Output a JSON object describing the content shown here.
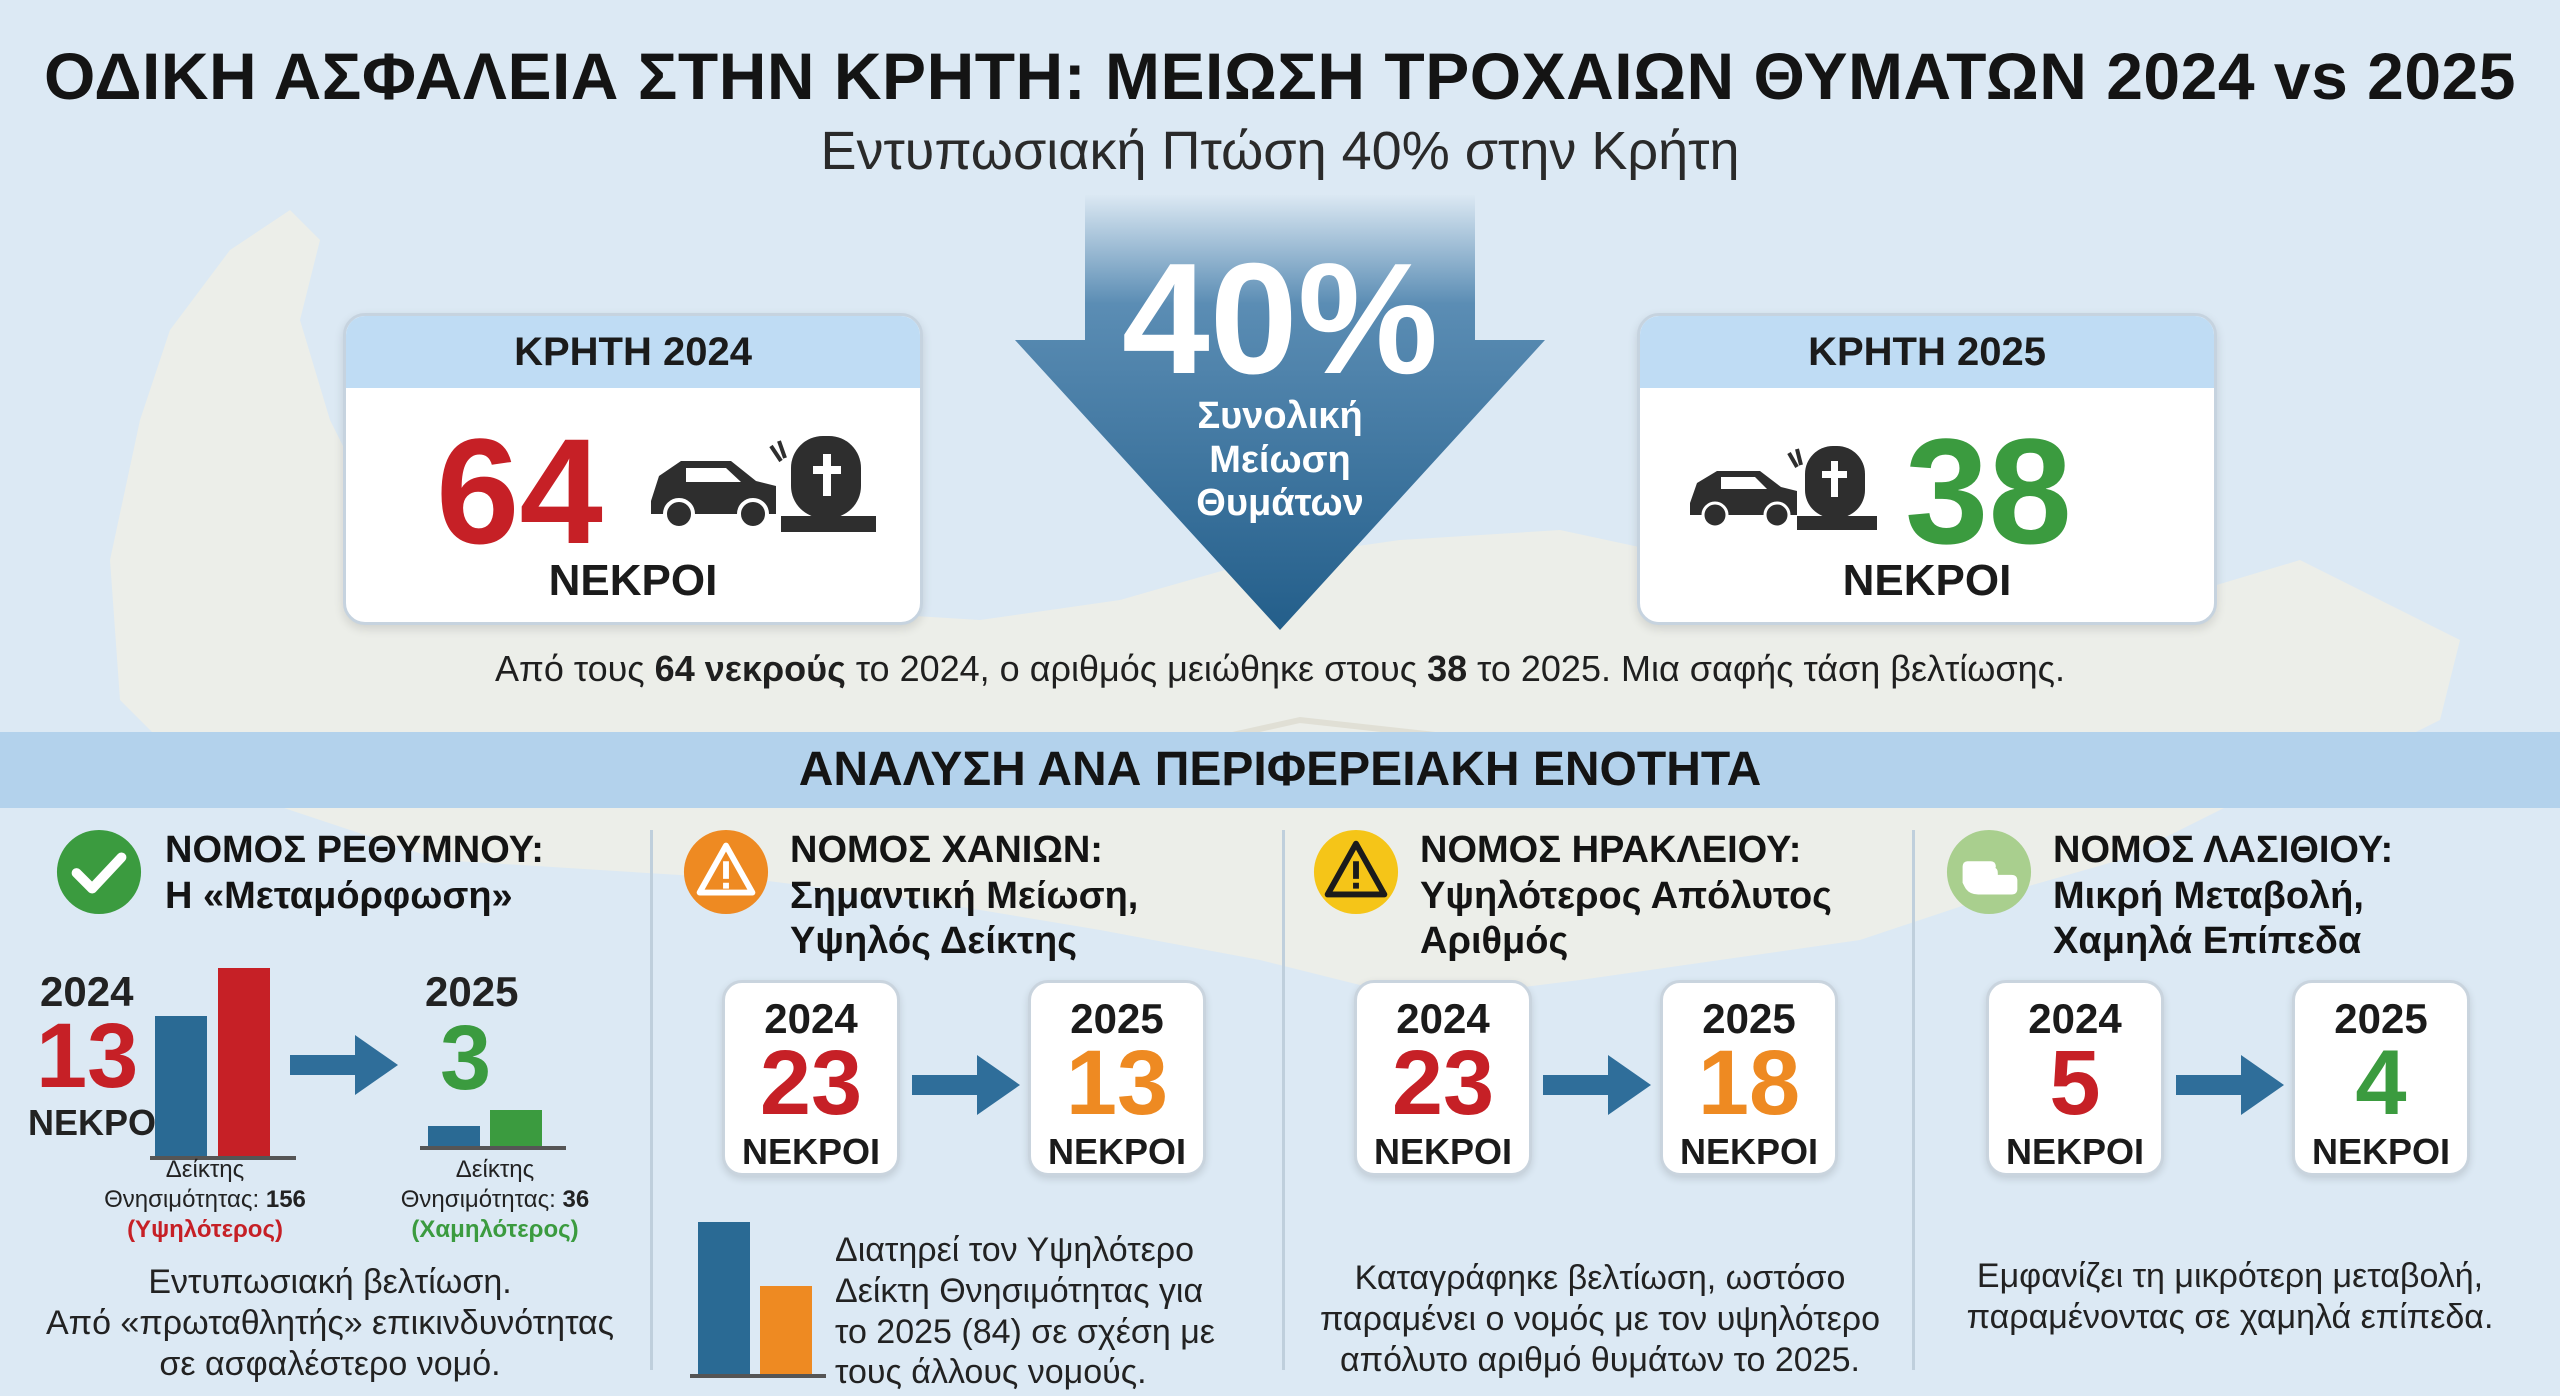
{
  "header": {
    "title": "ΟΔΙΚΗ ΑΣΦΑΛΕΙΑ ΣΤΗΝ ΚΡΗΤΗ: ΜΕΙΩΣΗ ΤΡΟΧΑΙΩΝ ΘΥΜΑΤΩΝ 2024 vs 2025",
    "subtitle": "Εντυπωσιακή Πτώση 40% στην Κρήτη"
  },
  "arrow": {
    "percent": "40%",
    "label": "Συνολική Μείωση Θυμάτων"
  },
  "card_2024": {
    "header": "ΚΡΗΤΗ 2024",
    "value": "64",
    "footer": "ΝΕΚΡΟΙ",
    "icon": "car-crash-tombstone-icon"
  },
  "card_2025": {
    "header": "ΚΡΗΤΗ 2025",
    "value": "38",
    "footer": "ΝΕΚΡΟΙ",
    "icon": "car-crash-tombstone-icon"
  },
  "summary": {
    "part1": "Από τους ",
    "bold1": "64 νεκρούς",
    "part2": " το 2024, ο αριθμός μειώθηκε στους ",
    "bold2": "38",
    "part3": " το 2025. Μια σαφής τάση βελτίωσης."
  },
  "section_title": "ΑΝΑΛΥΣΗ ΑΝΑ ΠΕΡΙΦΕΡΕΙΑΚΗ ΕΝΟΤΗΤΑ",
  "colors": {
    "red": "#c62026",
    "green": "#3b9b3f",
    "orange": "#ee8a22",
    "bar_blue": "#2a6a94",
    "arrow_blue": "#2f6e9a",
    "band": "#b3d2ec"
  },
  "regions": {
    "rethymno": {
      "icon": "check-circle-icon",
      "title_line1": "ΝΟΜΟΣ ΡΕΘΥΜΝΟΥ:",
      "title_line2": "Η «Μεταμόρφωση»",
      "year_2024": "2024",
      "value_2024": "13",
      "label": "ΝΕΚΡΟΙ",
      "year_2025": "2025",
      "value_2025": "3",
      "index_label_line1": "Δείκτης",
      "index_label_line2": "Θνησιμότητας:",
      "index_2024": "156",
      "index_2024_note": "(Υψηλότερος)",
      "index_2025": "36",
      "index_2025_note": "(Χαμηλότερος)",
      "note_line1": "Εντυπωσιακή βελτίωση.",
      "note_line2": "Από «πρωταθλητής» επικινδυνότητας",
      "note_line3": "σε ασφαλέστερο νομό."
    },
    "chania": {
      "icon": "warning-circle-icon",
      "title_line1": "ΝΟΜΟΣ ΧΑΝΙΩΝ:",
      "title_line2": "Σημαντική Μείωση,",
      "title_line3": "Υψηλός Δείκτης",
      "year_2024": "2024",
      "value_2024": "23",
      "year_2025": "2025",
      "value_2025": "13",
      "label": "ΝΕΚΡΟΙ",
      "note_line1": "Διατηρεί τον Υψηλότερο",
      "note_line2": "Δείκτη Θνησιμότητας για",
      "note_line3": "το 2025 (84) σε σχέση με",
      "note_line4": "τους άλλους νομούς."
    },
    "heraklion": {
      "icon": "warning-triangle-icon",
      "title_line1": "ΝΟΜΟΣ ΗΡΑΚΛΕΙΟΥ:",
      "title_line2": "Υψηλότερος Απόλυτος",
      "title_line3": "Αριθμός",
      "year_2024": "2024",
      "value_2024": "23",
      "year_2025": "2025",
      "value_2025": "18",
      "label": "ΝΕΚΡΟΙ",
      "note_line1": "Καταγράφηκε βελτίωση, ωστόσο",
      "note_line2": "παραμένει ο νομός με τον υψηλότερο",
      "note_line3": "απόλυτο αριθμό θυμάτων το 2025."
    },
    "lasithi": {
      "icon": "hand-pointing-icon",
      "title_line1": "ΝΟΜΟΣ ΛΑΣΙΘΙΟΥ:",
      "title_line2": "Μικρή Μεταβολή,",
      "title_line3": "Χαμηλά Επίπεδα",
      "year_2024": "2024",
      "value_2024": "5",
      "year_2025": "2025",
      "value_2025": "4",
      "label": "ΝΕΚΡΟΙ",
      "note_line1": "Εμφανίζει τη μικρότερη μεταβολή,",
      "note_line2": "παραμένοντας σε χαμηλά επίπεδα."
    }
  }
}
